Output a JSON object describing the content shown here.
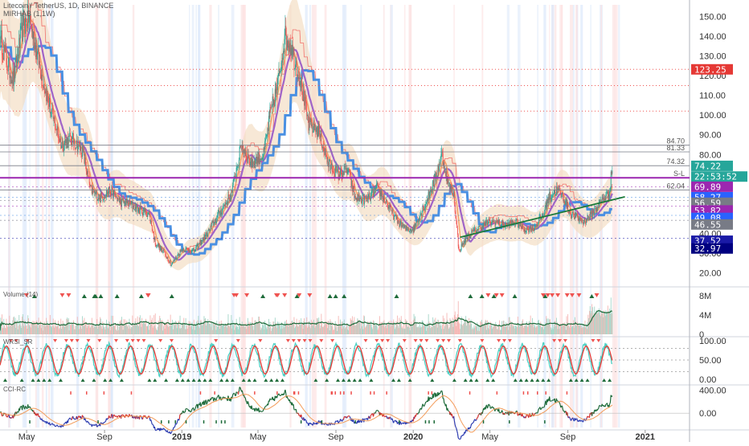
{
  "chart_data": [
    {
      "type": "candlestick",
      "title": "Litecoin / TetherUS, 1D, BINANCE",
      "subtitle": "MIRHAB (1,1W)",
      "x_tick_labels": [
        "May",
        "Sep",
        "2019",
        "May",
        "Sep",
        "2020",
        "May",
        "Sep",
        "2021"
      ],
      "y_ticks": [
        20,
        30,
        40,
        50,
        60,
        70,
        80,
        90,
        100,
        110,
        120,
        130,
        140,
        150
      ],
      "y_tick_labels": [
        "20.00",
        "30.00",
        "40.00",
        "50.00",
        "60.00",
        "70.00",
        "80.00",
        "90.00",
        "100.00",
        "110.00",
        "120.00",
        "130.00",
        "140.00",
        "150.00"
      ],
      "ylim": [
        14,
        156
      ],
      "price_path": [
        [
          "2018-03-20",
          140
        ],
        [
          "2018-04-01",
          125
        ],
        [
          "2018-04-10",
          118
        ],
        [
          "2018-04-25",
          145
        ],
        [
          "2018-05-05",
          150
        ],
        [
          "2018-05-25",
          120
        ],
        [
          "2018-06-10",
          100
        ],
        [
          "2018-06-25",
          85
        ],
        [
          "2018-07-10",
          88
        ],
        [
          "2018-07-28",
          82
        ],
        [
          "2018-08-10",
          62
        ],
        [
          "2018-08-25",
          58
        ],
        [
          "2018-09-10",
          62
        ],
        [
          "2018-09-25",
          56
        ],
        [
          "2018-10-10",
          55
        ],
        [
          "2018-10-25",
          52
        ],
        [
          "2018-11-10",
          50
        ],
        [
          "2018-11-20",
          35
        ],
        [
          "2018-12-05",
          30
        ],
        [
          "2018-12-15",
          24
        ],
        [
          "2019-01-01",
          32
        ],
        [
          "2019-01-20",
          31
        ],
        [
          "2019-02-10",
          40
        ],
        [
          "2019-03-01",
          50
        ],
        [
          "2019-03-20",
          60
        ],
        [
          "2019-04-05",
          85
        ],
        [
          "2019-04-20",
          75
        ],
        [
          "2019-05-10",
          80
        ],
        [
          "2019-05-20",
          100
        ],
        [
          "2019-06-01",
          115
        ],
        [
          "2019-06-12",
          140
        ],
        [
          "2019-06-22",
          135
        ],
        [
          "2019-07-05",
          120
        ],
        [
          "2019-07-20",
          95
        ],
        [
          "2019-08-05",
          92
        ],
        [
          "2019-08-20",
          75
        ],
        [
          "2019-09-05",
          70
        ],
        [
          "2019-09-20",
          72
        ],
        [
          "2019-10-01",
          58
        ],
        [
          "2019-10-20",
          57
        ],
        [
          "2019-11-05",
          63
        ],
        [
          "2019-11-20",
          55
        ],
        [
          "2019-12-05",
          47
        ],
        [
          "2019-12-20",
          42
        ],
        [
          "2020-01-01",
          42
        ],
        [
          "2020-01-20",
          55
        ],
        [
          "2020-02-05",
          68
        ],
        [
          "2020-02-15",
          80
        ],
        [
          "2020-02-25",
          65
        ],
        [
          "2020-03-05",
          60
        ],
        [
          "2020-03-13",
          31
        ],
        [
          "2020-03-25",
          38
        ],
        [
          "2020-04-10",
          42
        ],
        [
          "2020-04-25",
          45
        ],
        [
          "2020-05-10",
          46
        ],
        [
          "2020-05-25",
          44
        ],
        [
          "2020-06-10",
          46
        ],
        [
          "2020-06-25",
          42
        ],
        [
          "2020-07-10",
          43
        ],
        [
          "2020-07-25",
          50
        ],
        [
          "2020-08-01",
          58
        ],
        [
          "2020-08-15",
          62
        ],
        [
          "2020-08-25",
          58
        ],
        [
          "2020-09-05",
          50
        ],
        [
          "2020-09-25",
          46
        ],
        [
          "2020-10-10",
          50
        ],
        [
          "2020-10-25",
          57
        ],
        [
          "2020-11-05",
          60
        ],
        [
          "2020-11-10",
          74
        ]
      ],
      "horizontal_lines": [
        {
          "label": "84.70",
          "value": 84.7
        },
        {
          "label": "81.33",
          "value": 81.33
        },
        {
          "label": "74.32",
          "value": 74.32
        },
        {
          "label": "S-L",
          "value": 68.2
        },
        {
          "label": "62.04",
          "value": 62.04
        }
      ],
      "red_dotted_levels": [
        123.25,
        115,
        102
      ],
      "trendline": {
        "from": [
          "2020-03-15",
          38
        ],
        "to": [
          "2020-11-30",
          58.5
        ],
        "color": "#1b7a3a"
      },
      "price_badges": [
        {
          "label": "123.25",
          "value": 123.25,
          "color": "#e53935"
        },
        {
          "label": "74.22",
          "value": 74.22,
          "color": "#26a69a"
        },
        {
          "label": "22:53:52",
          "value": 68.8,
          "color": "#26a69a"
        },
        {
          "label": "69.89",
          "value": 63.6,
          "color": "#9c27b0"
        },
        {
          "label": "58.27",
          "value": 58.27,
          "color": "#2962ff"
        },
        {
          "label": "56.59",
          "value": 55.5,
          "color": "#787b86"
        },
        {
          "label": "53.82",
          "value": 51.6,
          "color": "#9c27b0"
        },
        {
          "label": "49.08",
          "value": 47.8,
          "color": "#2962ff"
        },
        {
          "label": "46.55",
          "value": 44.5,
          "color": "#787b86"
        },
        {
          "label": "37.52",
          "value": 36.2,
          "color": "#1a1aa6"
        },
        {
          "label": "32.97",
          "value": 32.3,
          "color": "#000080"
        }
      ]
    },
    {
      "type": "bar",
      "title": "Volume (14)",
      "y_tick_labels": [
        "8M",
        "4M",
        "0"
      ],
      "y_ticks": [
        8,
        4,
        0
      ],
      "ylim": [
        0,
        9
      ],
      "unit": "M"
    },
    {
      "type": "line",
      "title": "WRSI_SR",
      "y_tick_labels": [
        "100.00",
        "50.00",
        "0.00"
      ],
      "y_ticks": [
        100,
        50,
        0
      ],
      "ylim": [
        -8,
        108
      ]
    },
    {
      "type": "line",
      "title": "CCI-RC",
      "y_tick_labels": [
        "400.00",
        "0.00"
      ],
      "y_ticks": [
        400,
        0
      ],
      "ylim": [
        -250,
        480
      ]
    }
  ],
  "colors": {
    "green": "#26a69a",
    "red": "#ef5350",
    "blue": "#4a90e2",
    "purple": "#9c27b0",
    "orange": "#ff9800",
    "trend": "#1b7a3a",
    "band": "#f3dcc0"
  }
}
